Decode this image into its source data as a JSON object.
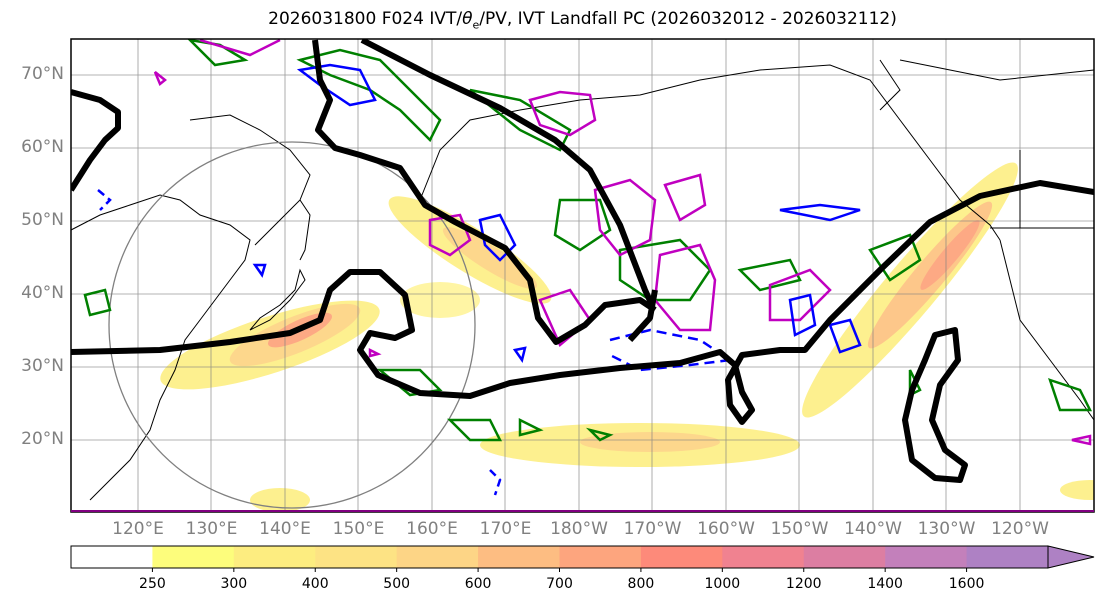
{
  "title": {
    "prefix": "2026031800 F024 IVT/",
    "theta": "θ",
    "theta_sub": "e",
    "suffix": "/PV, IVT Landfall PC (2026032012 - 2026032112)"
  },
  "map": {
    "projection": "equirectangular",
    "extent_lon": [
      110.9,
      250
    ],
    "extent_lat": [
      10,
      75
    ],
    "lat_labels": [
      "70°N",
      "60°N",
      "50°N",
      "40°N",
      "30°N",
      "20°N"
    ],
    "lon_labels": [
      "120°E",
      "130°E",
      "140°E",
      "150°E",
      "160°E",
      "170°E",
      "180°W",
      "170°W",
      "160°W",
      "150°W",
      "140°W",
      "130°W",
      "120°W"
    ],
    "colors": {
      "ridge_contour": "#000000",
      "theta_e": "#008000",
      "pv_positive": "#c000c0",
      "pv_negative": "#0000ff",
      "grid": "#808080",
      "border": "#800080"
    }
  },
  "colorbar": {
    "ticks": [
      "250",
      "300",
      "400",
      "500",
      "600",
      "700",
      "800",
      "1000",
      "1200",
      "1400",
      "1600"
    ],
    "colors": [
      "#ffffff",
      "#fdfd7c",
      "#fded80",
      "#fde384",
      "#fdd586",
      "#fdbd82",
      "#fda57e",
      "#fd8a7a",
      "#f08290",
      "#dc7ea2",
      "#c380bb",
      "#ae81c4"
    ]
  }
}
